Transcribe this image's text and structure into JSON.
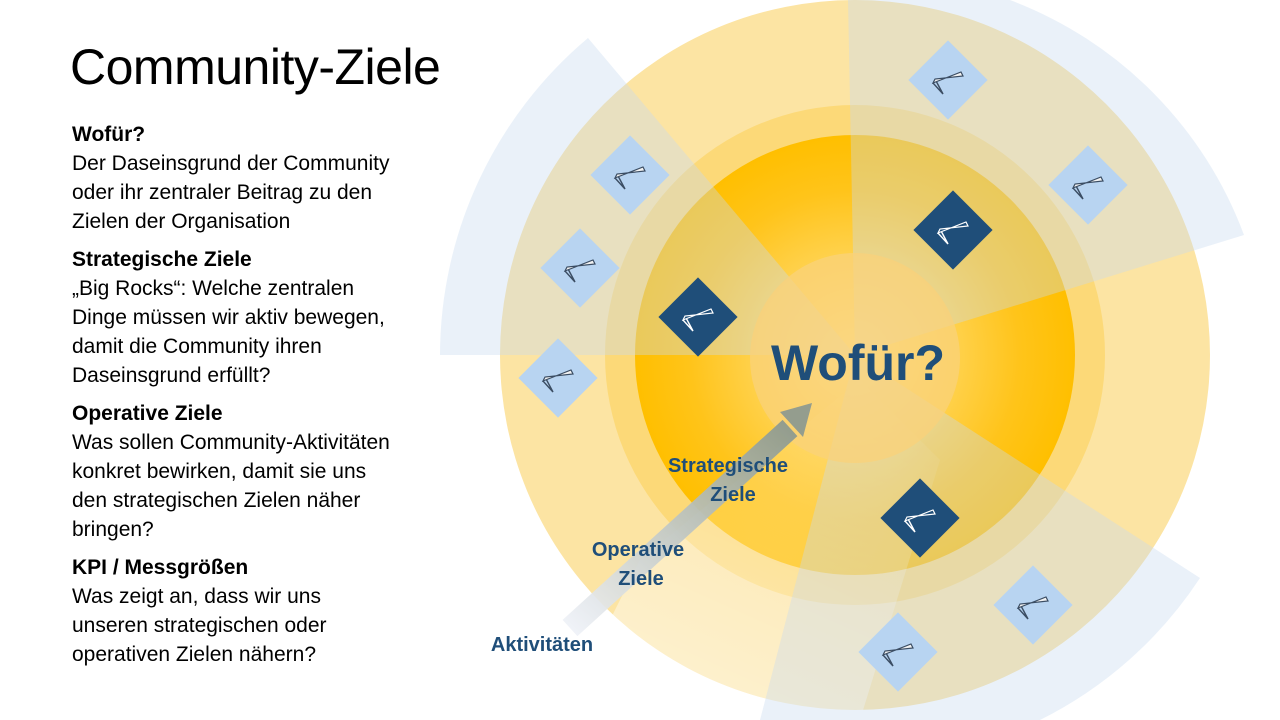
{
  "slide": {
    "title": "Community-Ziele"
  },
  "sections": [
    {
      "heading": "Wofür?",
      "body": "Der Daseinsgrund der Community\noder ihr zentraler Beitrag zu den\nZielen der Organisation"
    },
    {
      "heading": "Strategische Ziele",
      "body": "„Big Rocks“: Welche zentralen\nDinge müssen wir aktiv bewegen,\ndamit die Community ihren\nDaseinsgrund erfüllt?"
    },
    {
      "heading": "Operative Ziele",
      "body": "Was sollen Community-Aktivitäten\nkonkret bewirken, damit sie uns\nden strategischen Zielen näher\nbringen?"
    },
    {
      "heading": "KPI / Messgrößen",
      "body": "Was zeigt an, dass wir uns\nunseren strategischen oder\noperativen Zielen nähern?"
    }
  ],
  "diagram": {
    "center_label": "Wofür?",
    "ring_labels": {
      "strategic_line1": "Strategische",
      "strategic_line2": "Ziele",
      "operative_line1": "Operative",
      "operative_line2": "Ziele",
      "activities": "Aktivitäten"
    },
    "note_icon": "sticky-note-with-pen-icon",
    "colors": {
      "ring_yellow": "#fce4a3",
      "core_yellow": "#ffc000",
      "sector_blue": "#c9d9ef",
      "note_light": "#b8d4f1",
      "note_dark": "#1f4e79",
      "label_blue": "#1f4e79"
    }
  }
}
